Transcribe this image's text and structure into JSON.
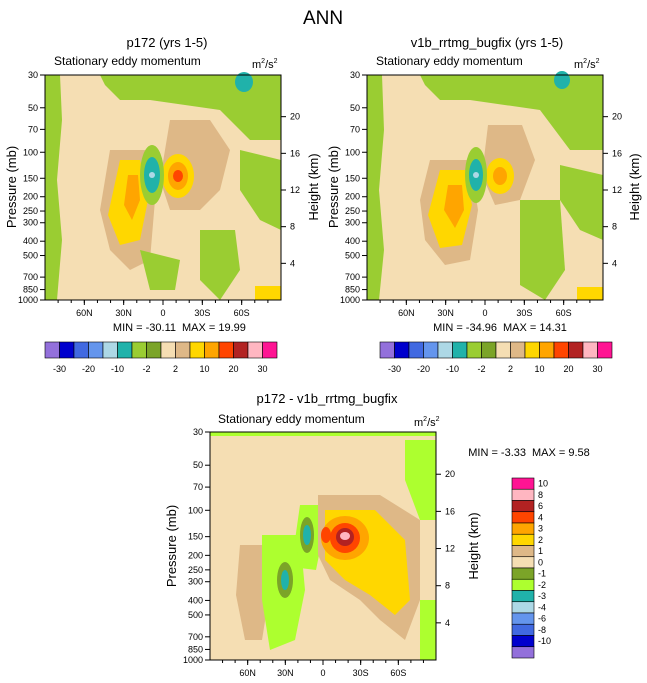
{
  "main_title": "ANN",
  "colors": {
    "scale_abs": [
      "#9370DB",
      "#0000CD",
      "#4169E1",
      "#6495ED",
      "#ADD8E6",
      "#20B2AA",
      "#9ACD32",
      "#7BA428",
      "#F5DEB3",
      "#DEB887",
      "#FFD700",
      "#FFA500",
      "#FF4500",
      "#B22222",
      "#FFB6C1",
      "#FF1493"
    ],
    "scale_diff": [
      "#9370DB",
      "#0000CD",
      "#4169E1",
      "#6495ED",
      "#ADD8E6",
      "#20B2AA",
      "#ADFF2F",
      "#7BA428",
      "#F5DEB3",
      "#DEB887",
      "#FFD700",
      "#FFA500",
      "#FF4500",
      "#B22222",
      "#FFB6C1",
      "#FF1493"
    ]
  },
  "chart_data": [
    {
      "type": "heatmap",
      "title": "p172 (yrs 1-5)",
      "subtitle": "Stationary eddy momentum",
      "units_base": "m",
      "units_sup": "2",
      "units_sep": "/s",
      "units_sup2": "2",
      "ylabel": "Pressure (mb)",
      "ylabel_right": "Height (km)",
      "y_ticks": [
        "30",
        "50",
        "70",
        "100",
        "150",
        "200",
        "250",
        "300",
        "400",
        "500",
        "700",
        "850",
        "1000"
      ],
      "y_tick_values": [
        30,
        50,
        70,
        100,
        150,
        200,
        250,
        300,
        400,
        500,
        700,
        850,
        1000
      ],
      "ylim": [
        1000,
        30
      ],
      "x_ticks": [
        "60N",
        "30N",
        "0",
        "30S",
        "60S"
      ],
      "x_tick_values": [
        60,
        30,
        0,
        -30,
        -60
      ],
      "xlim": [
        90,
        -90
      ],
      "height_ticks": [
        "20",
        "16",
        "12",
        "8",
        "4"
      ],
      "height_tick_values": [
        20,
        16,
        12,
        8,
        4
      ],
      "min_label": "MIN = -30.11",
      "max_label": "MAX =  19.99",
      "min": -30.11,
      "max": 19.99,
      "colorbar_labels": [
        "-30",
        "-20",
        "-10",
        "-2",
        "2",
        "10",
        "20",
        "30"
      ]
    },
    {
      "type": "heatmap",
      "title": "v1b_rrtmg_bugfix (yrs 1-5)",
      "subtitle": "Stationary eddy momentum",
      "units_base": "m",
      "units_sup": "2",
      "units_sep": "/s",
      "units_sup2": "2",
      "ylabel": "Pressure (mb)",
      "ylabel_right": "Height (km)",
      "y_ticks": [
        "30",
        "50",
        "70",
        "100",
        "150",
        "200",
        "250",
        "300",
        "400",
        "500",
        "700",
        "850",
        "1000"
      ],
      "y_tick_values": [
        30,
        50,
        70,
        100,
        150,
        200,
        250,
        300,
        400,
        500,
        700,
        850,
        1000
      ],
      "ylim": [
        1000,
        30
      ],
      "x_ticks": [
        "60N",
        "30N",
        "0",
        "30S",
        "60S"
      ],
      "x_tick_values": [
        60,
        30,
        0,
        -30,
        -60
      ],
      "xlim": [
        90,
        -90
      ],
      "height_ticks": [
        "20",
        "16",
        "12",
        "8",
        "4"
      ],
      "height_tick_values": [
        20,
        16,
        12,
        8,
        4
      ],
      "min_label": "MIN = -34.96",
      "max_label": "MAX =  14.31",
      "min": -34.96,
      "max": 14.31,
      "colorbar_labels": [
        "-30",
        "-20",
        "-10",
        "-2",
        "2",
        "10",
        "20",
        "30"
      ]
    },
    {
      "type": "heatmap",
      "title": "p172 - v1b_rrtmg_bugfix",
      "subtitle": "Stationary eddy momentum",
      "units_base": "m",
      "units_sup": "2",
      "units_sep": "/s",
      "units_sup2": "2",
      "ylabel": "Pressure (mb)",
      "ylabel_right": "Height (km)",
      "y_ticks": [
        "30",
        "50",
        "70",
        "100",
        "150",
        "200",
        "250",
        "300",
        "400",
        "500",
        "700",
        "850",
        "1000"
      ],
      "y_tick_values": [
        30,
        50,
        70,
        100,
        150,
        200,
        250,
        300,
        400,
        500,
        700,
        850,
        1000
      ],
      "ylim": [
        1000,
        30
      ],
      "x_ticks": [
        "60N",
        "30N",
        "0",
        "30S",
        "60S"
      ],
      "x_tick_values": [
        60,
        30,
        0,
        -30,
        -60
      ],
      "xlim": [
        90,
        -90
      ],
      "height_ticks": [
        "20",
        "16",
        "12",
        "8",
        "4"
      ],
      "height_tick_values": [
        20,
        16,
        12,
        8,
        4
      ],
      "min_label": "MIN =  -3.33",
      "max_label": "MAX =   9.58",
      "min": -3.33,
      "max": 9.58,
      "colorbar_labels": [
        "10",
        "8",
        "6",
        "4",
        "3",
        "2",
        "1",
        "0",
        "-1",
        "-2",
        "-3",
        "-4",
        "-6",
        "-8",
        "-10"
      ]
    }
  ]
}
